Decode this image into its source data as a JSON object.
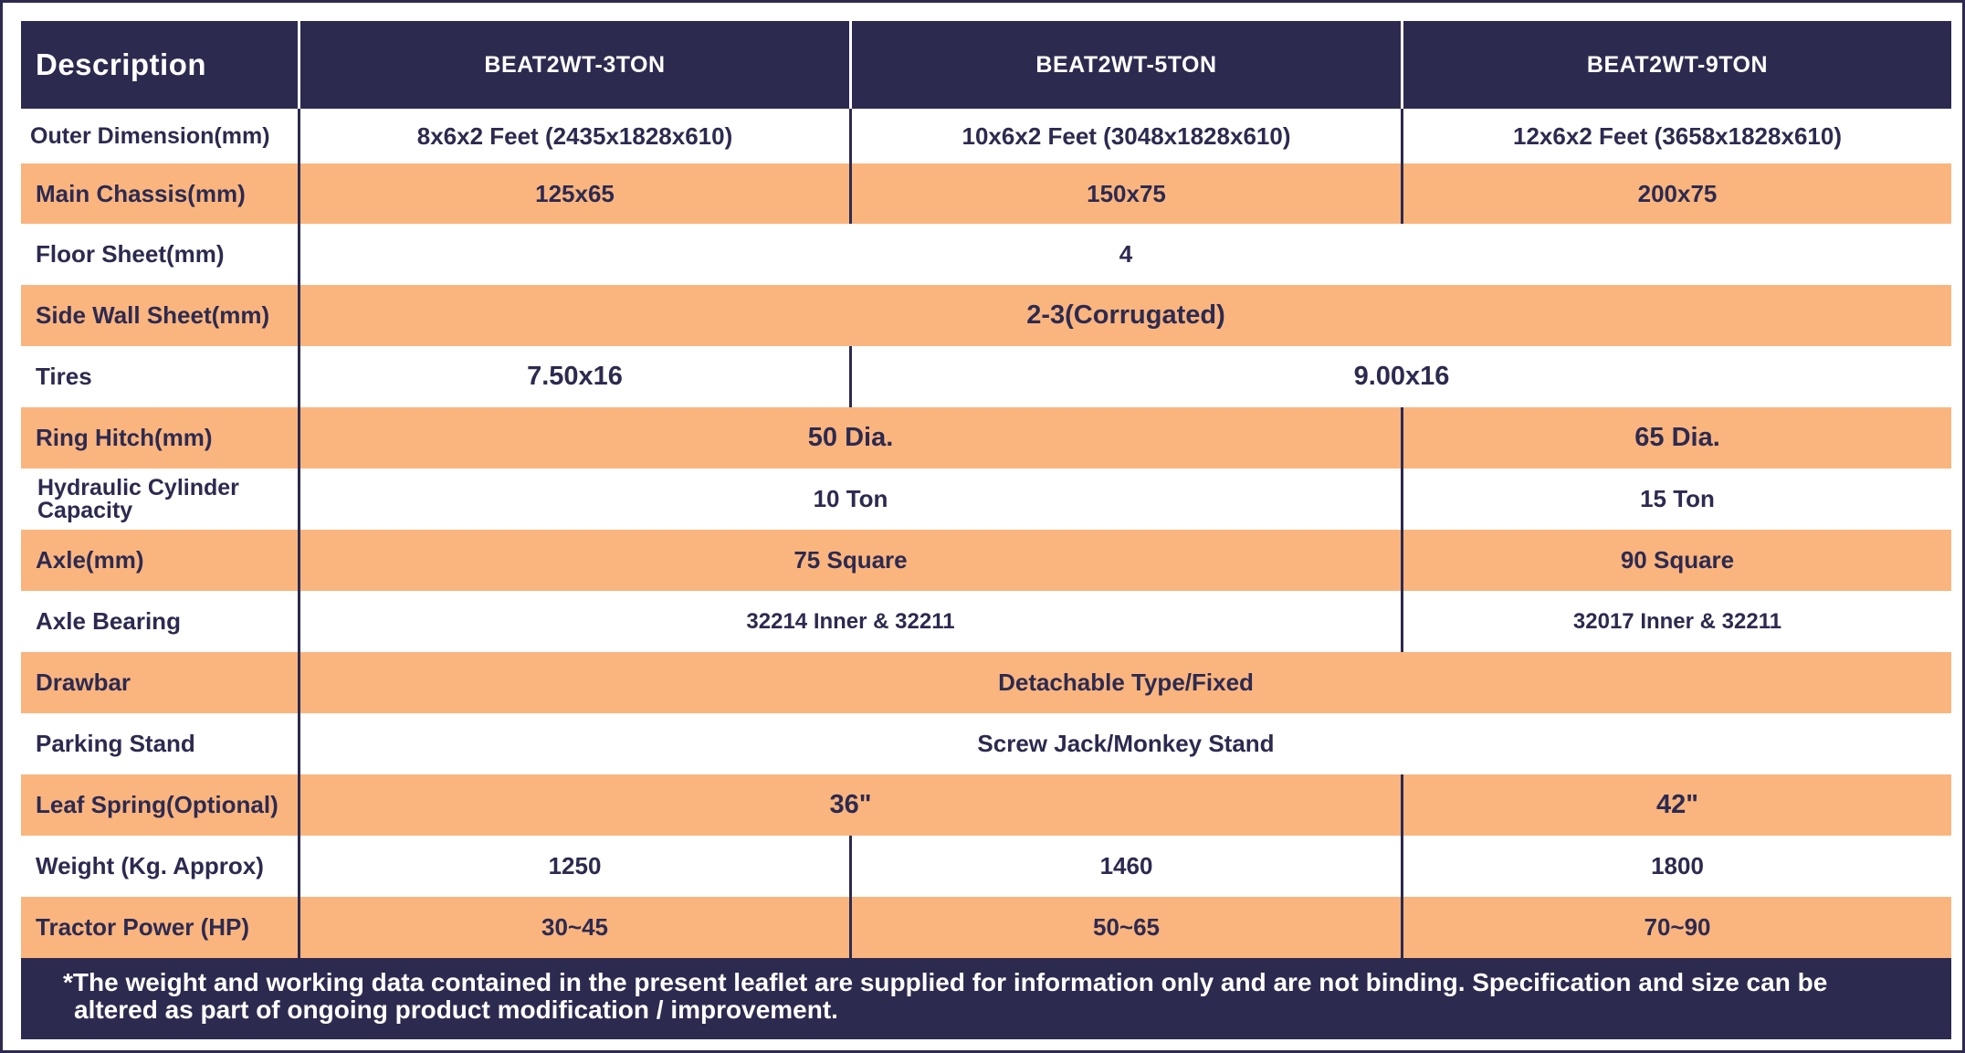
{
  "header": {
    "description": "Description",
    "models": [
      "BEAT2WT-3TON",
      "BEAT2WT-5TON",
      "BEAT2WT-9TON"
    ]
  },
  "rows": [
    {
      "label": "Outer Dimension(mm)",
      "values": [
        "8x6x2 Feet (2435x1828x610)",
        "10x6x2 Feet (3048x1828x610)",
        "12x6x2 Feet (3658x1828x610)"
      ]
    },
    {
      "label": "Main Chassis(mm)",
      "values": [
        "125x65",
        "150x75",
        "200x75"
      ]
    },
    {
      "label": "Floor Sheet(mm)",
      "values": [
        "4"
      ]
    },
    {
      "label": "Side Wall Sheet(mm)",
      "values": [
        "2-3(Corrugated)"
      ]
    },
    {
      "label": "Tires",
      "values": [
        "7.50x16",
        "9.00x16"
      ]
    },
    {
      "label": "Ring Hitch(mm)",
      "values": [
        "50 Dia.",
        "65 Dia."
      ]
    },
    {
      "label": "Hydraulic Cylinder Capacity",
      "values": [
        "10 Ton",
        "15 Ton"
      ]
    },
    {
      "label": "Axle(mm)",
      "values": [
        "75 Square",
        "90 Square"
      ]
    },
    {
      "label": "Axle Bearing",
      "values": [
        "32214 Inner & 32211",
        "32017 Inner & 32211"
      ]
    },
    {
      "label": "Drawbar",
      "values": [
        "Detachable Type/Fixed"
      ]
    },
    {
      "label": "Parking Stand",
      "values": [
        "Screw Jack/Monkey Stand"
      ]
    },
    {
      "label": "Leaf Spring(Optional)",
      "values": [
        "36\"",
        "42\""
      ]
    },
    {
      "label": "Weight (Kg. Approx)",
      "values": [
        "1250",
        "1460",
        "1800"
      ]
    },
    {
      "label": "Tractor Power (HP)",
      "values": [
        "30~45",
        "50~65",
        "70~90"
      ]
    }
  ],
  "footnote": "*The weight and working data contained in the present leaflet are supplied for information only and are not binding. Specification and size can be altered as part of ongoing product modification / improvement.",
  "colors": {
    "navy": "#2d2a50",
    "orange": "#fab57f",
    "white": "#ffffff"
  }
}
